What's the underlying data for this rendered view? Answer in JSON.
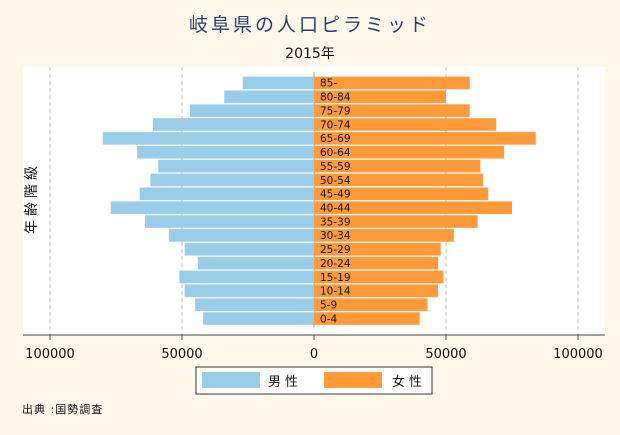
{
  "title": "岐阜県の人口ピラミッド",
  "subtitle": "2015年",
  "source": "出典 :国勢調査",
  "chart_data": {
    "type": "bar",
    "orientation": "horizontal-pyramid",
    "ylabel": "年齢階級",
    "categories": [
      "0-4",
      "5-9",
      "10-14",
      "15-19",
      "20-24",
      "25-29",
      "30-34",
      "35-39",
      "40-44",
      "45-49",
      "50-54",
      "55-59",
      "60-64",
      "65-69",
      "70-74",
      "75-79",
      "80-84",
      "85-"
    ],
    "series": [
      {
        "name": "男性",
        "color": "#99cce9",
        "side": "left",
        "values": [
          42000,
          45000,
          49000,
          51000,
          44000,
          49000,
          55000,
          64000,
          77000,
          66000,
          62000,
          59000,
          67000,
          80000,
          61000,
          47000,
          34000,
          27000
        ]
      },
      {
        "name": "女性",
        "color": "#fe9a39",
        "side": "right",
        "values": [
          40000,
          43000,
          47000,
          49000,
          47000,
          48000,
          53000,
          62000,
          75000,
          66000,
          64000,
          63000,
          72000,
          84000,
          69000,
          59000,
          50000,
          59000
        ]
      }
    ],
    "xticks": [
      "100000",
      "50000",
      "0",
      "50000",
      "100000"
    ],
    "xlim": [
      -100000,
      100000
    ],
    "grid": "vertical-dashed",
    "legend_position": "bottom"
  }
}
